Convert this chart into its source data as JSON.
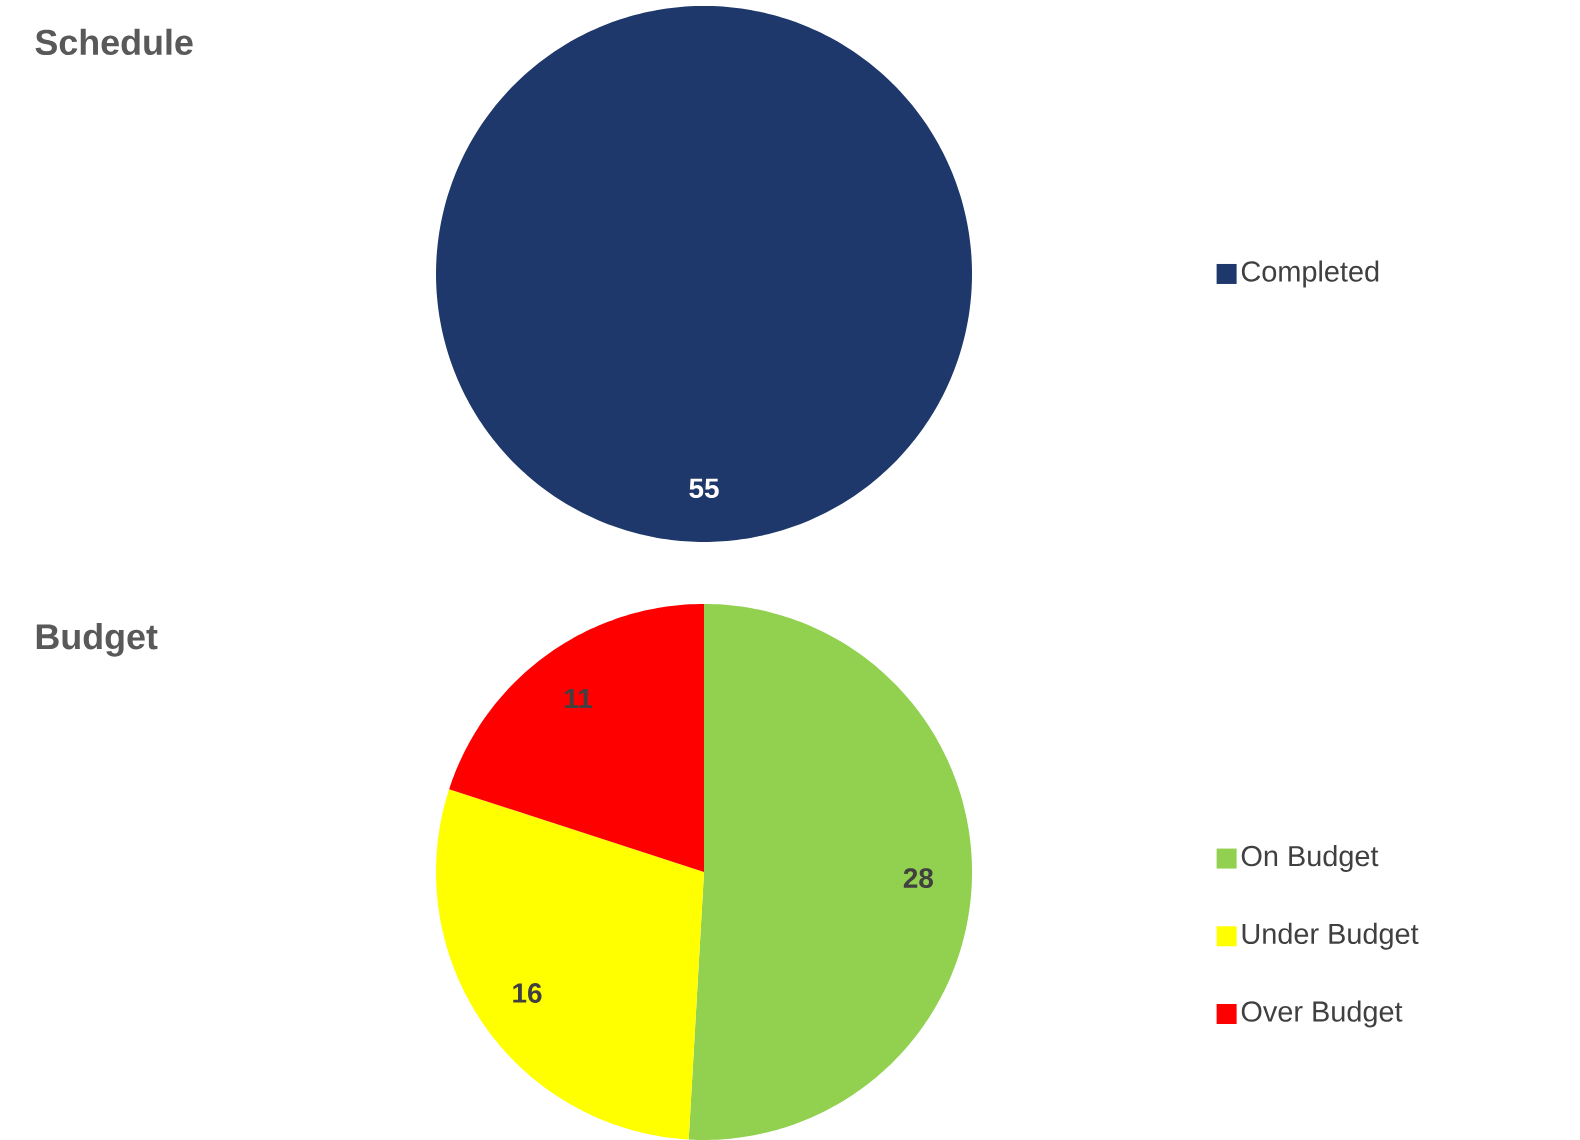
{
  "chart_data": [
    {
      "type": "pie",
      "title": "Schedule",
      "categories": [
        "Completed"
      ],
      "values": [
        55
      ],
      "colors": [
        "#1f386b"
      ],
      "data_labels": true,
      "legend": "right"
    },
    {
      "type": "pie",
      "title": "Budget",
      "categories": [
        "On Budget",
        "Under Budget",
        "Over Budget"
      ],
      "values": [
        28,
        16,
        11
      ],
      "colors": [
        "#92d050",
        "#ffff00",
        "#ff0000"
      ],
      "data_labels": true,
      "legend": "right"
    }
  ]
}
